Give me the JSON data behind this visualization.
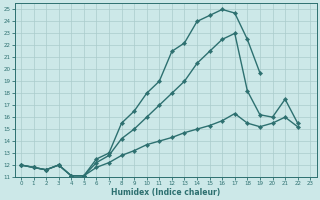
{
  "xlabel": "Humidex (Indice chaleur)",
  "background_color": "#cce8e8",
  "grid_color": "#aacccc",
  "line_color": "#2d7070",
  "xlim": [
    -0.5,
    23.5
  ],
  "ylim": [
    11,
    25.5
  ],
  "yticks": [
    11,
    12,
    13,
    14,
    15,
    16,
    17,
    18,
    19,
    20,
    21,
    22,
    23,
    24,
    25
  ],
  "xticks": [
    0,
    1,
    2,
    3,
    4,
    5,
    6,
    7,
    8,
    9,
    10,
    11,
    12,
    13,
    14,
    15,
    16,
    17,
    18,
    19,
    20,
    21,
    22,
    23
  ],
  "series": [
    {
      "x": [
        0,
        1,
        2,
        3,
        4,
        5,
        6,
        7,
        8,
        9,
        10,
        11,
        12,
        13,
        14,
        15,
        16,
        17,
        18,
        19
      ],
      "y": [
        12,
        11.8,
        11.6,
        12.0,
        11.1,
        11.1,
        12.5,
        13.0,
        15.5,
        16.5,
        18.0,
        19.0,
        21.5,
        22.2,
        24.0,
        24.5,
        25.0,
        24.7,
        22.5,
        19.7
      ]
    },
    {
      "x": [
        0,
        1,
        2,
        3,
        4,
        5,
        6,
        7,
        8,
        9,
        10,
        11,
        12,
        13,
        14,
        15,
        16,
        17,
        18,
        19,
        20,
        21,
        22
      ],
      "y": [
        12,
        11.8,
        11.6,
        12.0,
        11.1,
        11.1,
        12.2,
        12.8,
        14.2,
        15.0,
        16.0,
        17.0,
        18.0,
        19.0,
        20.5,
        21.5,
        22.5,
        23.0,
        18.2,
        16.2,
        16.0,
        17.5,
        15.5
      ]
    },
    {
      "x": [
        0,
        1,
        2,
        3,
        4,
        5,
        6,
        7,
        8,
        9,
        10,
        11,
        12,
        13,
        14,
        15,
        16,
        17,
        18,
        19,
        20,
        21,
        22
      ],
      "y": [
        12,
        11.8,
        11.6,
        12.0,
        11.1,
        11.1,
        11.8,
        12.2,
        12.8,
        13.2,
        13.7,
        14.0,
        14.3,
        14.7,
        15.0,
        15.3,
        15.7,
        16.3,
        15.5,
        15.2,
        15.5,
        16.0,
        15.2
      ]
    }
  ],
  "marker": "D",
  "markersize": 2.2,
  "linewidth": 1.0
}
